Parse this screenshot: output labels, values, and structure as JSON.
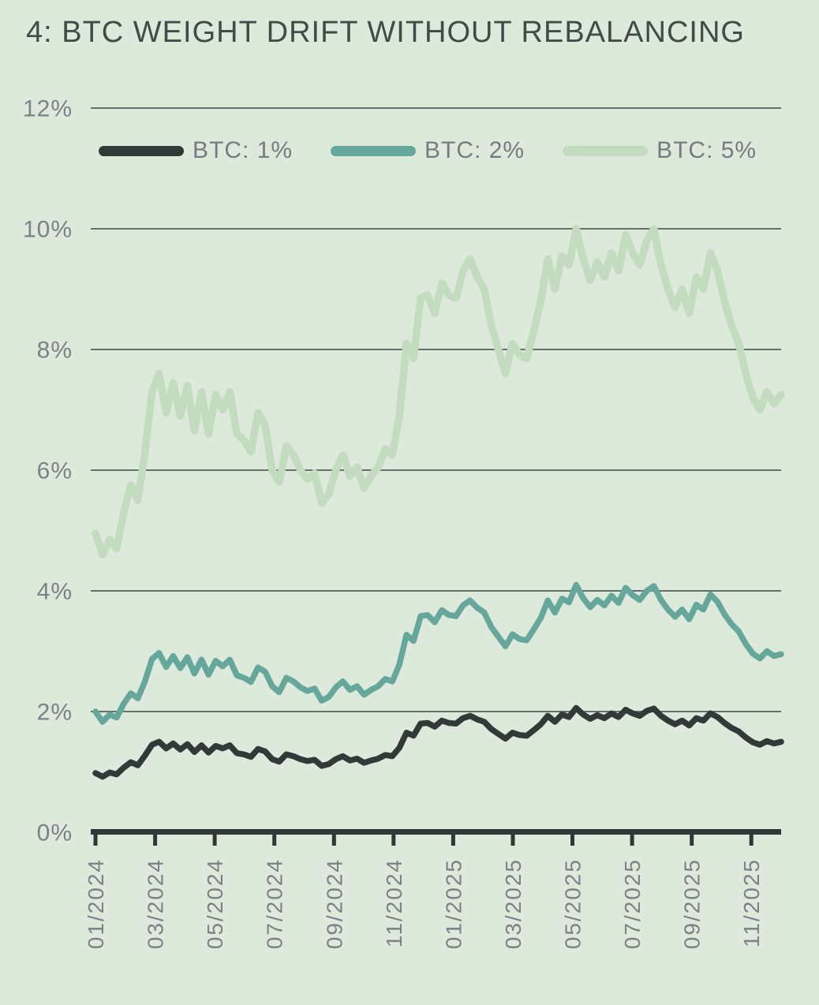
{
  "title": "4: BTC WEIGHT DRIFT WITHOUT REBALANCING",
  "colors": {
    "background": "#dde9db",
    "title_text": "#414c48",
    "axis_labels": "#7b8185",
    "legend_labels": "#757b7e",
    "gridline": "#3e4844",
    "axis_line": "#2f3835",
    "series_btc_1": "#313a37",
    "series_btc_2": "#65a89b",
    "series_btc_5": "#c3dcc0"
  },
  "legend": [
    {
      "label": "BTC: 1%",
      "key": "btc_1",
      "color": "#313a37"
    },
    {
      "label": "BTC: 2%",
      "key": "btc_2",
      "color": "#65a89b"
    },
    {
      "label": "BTC: 5%",
      "key": "btc_5",
      "color": "#c3dcc0"
    }
  ],
  "chart_data": {
    "type": "line",
    "title": "4: BTC WEIGHT DRIFT WITHOUT REBALANCING",
    "grid": "horizontal-only",
    "legend_position": "top-inside",
    "y_axis": {
      "unit": "%",
      "range": [
        0,
        12
      ],
      "tick_values": [
        0,
        2,
        4,
        6,
        8,
        10,
        12
      ],
      "tick_labels": [
        "0%",
        "2%",
        "4%",
        "6%",
        "8%",
        "10%",
        "12%"
      ]
    },
    "x_axis": {
      "unit": "month",
      "months_total": 23.0,
      "label_rotation_deg": -90,
      "tick_months": [
        0,
        2,
        4,
        6,
        8,
        10,
        12,
        14,
        16,
        18,
        20,
        22
      ],
      "tick_labels": [
        "01/2024",
        "03/2024",
        "05/2024",
        "07/2024",
        "09/2024",
        "11/2024",
        "01/2025",
        "03/2025",
        "05/2025",
        "07/2025",
        "09/2025",
        "11/2025"
      ]
    },
    "x_grid": {
      "x_unit": "months since 2024-01",
      "start_month": 0,
      "step_months": 0.2371,
      "points": 98
    },
    "series": [
      {
        "name": "BTC: 1%",
        "key": "btc_1",
        "color": "#313a37",
        "values": [
          0.98,
          0.92,
          0.99,
          0.96,
          1.07,
          1.16,
          1.11,
          1.27,
          1.45,
          1.5,
          1.39,
          1.47,
          1.37,
          1.46,
          1.33,
          1.44,
          1.32,
          1.43,
          1.39,
          1.44,
          1.31,
          1.29,
          1.25,
          1.38,
          1.34,
          1.21,
          1.17,
          1.29,
          1.26,
          1.21,
          1.18,
          1.2,
          1.1,
          1.13,
          1.21,
          1.26,
          1.19,
          1.22,
          1.15,
          1.19,
          1.22,
          1.28,
          1.26,
          1.4,
          1.65,
          1.6,
          1.8,
          1.81,
          1.75,
          1.85,
          1.81,
          1.8,
          1.89,
          1.93,
          1.87,
          1.83,
          1.71,
          1.63,
          1.55,
          1.65,
          1.61,
          1.6,
          1.69,
          1.79,
          1.93,
          1.83,
          1.95,
          1.91,
          2.06,
          1.95,
          1.88,
          1.94,
          1.89,
          1.97,
          1.91,
          2.03,
          1.97,
          1.93,
          2.01,
          2.05,
          1.93,
          1.85,
          1.79,
          1.85,
          1.77,
          1.89,
          1.85,
          1.97,
          1.91,
          1.81,
          1.73,
          1.67,
          1.57,
          1.49,
          1.45,
          1.51,
          1.47,
          1.5
        ]
      },
      {
        "name": "BTC: 2%",
        "key": "btc_2",
        "color": "#65a89b",
        "values": [
          2.0,
          1.83,
          1.95,
          1.9,
          2.13,
          2.3,
          2.22,
          2.5,
          2.87,
          2.97,
          2.74,
          2.92,
          2.72,
          2.9,
          2.63,
          2.86,
          2.61,
          2.84,
          2.75,
          2.86,
          2.6,
          2.56,
          2.49,
          2.73,
          2.66,
          2.42,
          2.32,
          2.56,
          2.5,
          2.4,
          2.34,
          2.38,
          2.18,
          2.24,
          2.4,
          2.5,
          2.36,
          2.42,
          2.28,
          2.36,
          2.42,
          2.54,
          2.5,
          2.78,
          3.27,
          3.17,
          3.58,
          3.6,
          3.48,
          3.68,
          3.6,
          3.58,
          3.76,
          3.84,
          3.72,
          3.64,
          3.4,
          3.24,
          3.08,
          3.28,
          3.2,
          3.18,
          3.36,
          3.55,
          3.84,
          3.64,
          3.87,
          3.81,
          4.1,
          3.88,
          3.73,
          3.85,
          3.76,
          3.92,
          3.8,
          4.05,
          3.93,
          3.85,
          4.0,
          4.08,
          3.85,
          3.69,
          3.57,
          3.69,
          3.53,
          3.77,
          3.69,
          3.94,
          3.82,
          3.61,
          3.45,
          3.33,
          3.12,
          2.96,
          2.88,
          3.0,
          2.92,
          2.95
        ]
      },
      {
        "name": "BTC: 5%",
        "key": "btc_5",
        "color": "#c3dcc0",
        "values": [
          4.95,
          4.6,
          4.85,
          4.7,
          5.3,
          5.75,
          5.5,
          6.3,
          7.3,
          7.6,
          6.95,
          7.45,
          6.9,
          7.4,
          6.65,
          7.3,
          6.6,
          7.25,
          7.0,
          7.3,
          6.6,
          6.5,
          6.3,
          6.95,
          6.75,
          6.0,
          5.8,
          6.4,
          6.25,
          6.0,
          5.85,
          5.95,
          5.45,
          5.6,
          6.0,
          6.25,
          5.9,
          6.05,
          5.7,
          5.9,
          6.05,
          6.35,
          6.25,
          6.9,
          8.1,
          7.85,
          8.85,
          8.9,
          8.6,
          9.1,
          8.9,
          8.85,
          9.3,
          9.5,
          9.2,
          9.0,
          8.4,
          8.0,
          7.6,
          8.1,
          7.9,
          7.85,
          8.3,
          8.8,
          9.5,
          9.0,
          9.55,
          9.4,
          10.0,
          9.5,
          9.15,
          9.45,
          9.2,
          9.6,
          9.3,
          9.9,
          9.6,
          9.4,
          9.8,
          10.0,
          9.4,
          9.0,
          8.7,
          9.0,
          8.6,
          9.2,
          9.0,
          9.6,
          9.3,
          8.8,
          8.4,
          8.1,
          7.6,
          7.2,
          7.0,
          7.3,
          7.1,
          7.25
        ]
      }
    ]
  }
}
